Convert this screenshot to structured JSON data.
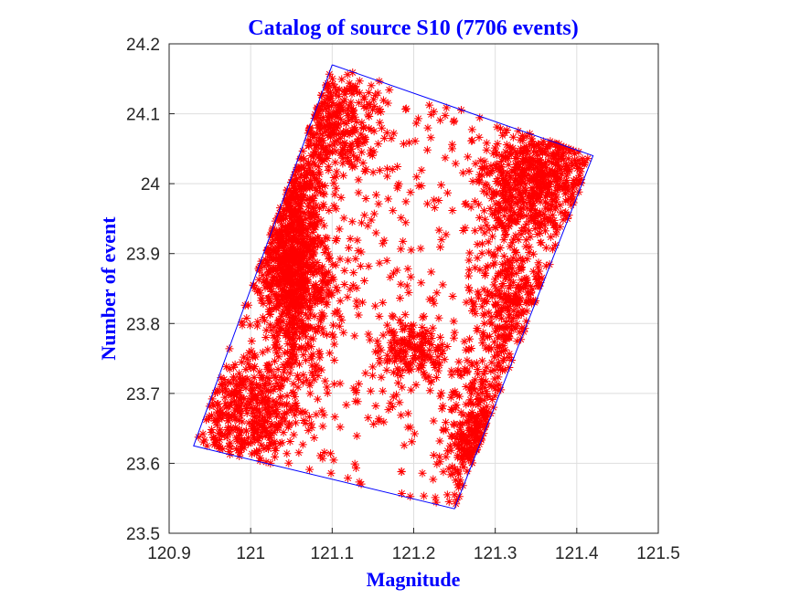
{
  "chart_data": {
    "type": "scatter",
    "title": "Catalog of source S10 (7706 events)",
    "xlabel": "Magnitude",
    "ylabel": "Number of event",
    "xlim": [
      120.9,
      121.5
    ],
    "ylim": [
      23.5,
      24.2
    ],
    "xticks": [
      "120.9",
      "121",
      "121.1",
      "121.2",
      "121.3",
      "121.4",
      "121.5"
    ],
    "yticks": [
      "23.5",
      "23.6",
      "23.7",
      "23.8",
      "23.9",
      "24",
      "24.1",
      "24.2"
    ],
    "grid": true,
    "marker": "asterisk",
    "marker_color": "#ff0000",
    "boundary_color": "#0000ff",
    "boundary_polygon": [
      [
        121.1,
        24.17
      ],
      [
        121.42,
        24.04
      ],
      [
        121.25,
        23.535
      ],
      [
        120.93,
        23.625
      ],
      [
        121.1,
        24.17
      ]
    ],
    "density_clusters": [
      {
        "x": 121.05,
        "y": 23.9,
        "sx": 0.022,
        "sy": 0.09,
        "weight": 0.3
      },
      {
        "x": 121.35,
        "y": 24.01,
        "sx": 0.035,
        "sy": 0.045,
        "weight": 0.18
      },
      {
        "x": 121.28,
        "y": 23.62,
        "sx": 0.02,
        "sy": 0.06,
        "weight": 0.12
      },
      {
        "x": 120.99,
        "y": 23.67,
        "sx": 0.035,
        "sy": 0.04,
        "weight": 0.12
      },
      {
        "x": 121.1,
        "y": 24.09,
        "sx": 0.03,
        "sy": 0.04,
        "weight": 0.1
      },
      {
        "x": 121.32,
        "y": 23.82,
        "sx": 0.025,
        "sy": 0.08,
        "weight": 0.1
      },
      {
        "x": 121.2,
        "y": 23.76,
        "sx": 0.02,
        "sy": 0.02,
        "weight": 0.04
      },
      {
        "x": 121.18,
        "y": 23.88,
        "sx": 0.07,
        "sy": 0.15,
        "weight": 0.04
      }
    ],
    "n_points": 7706
  }
}
